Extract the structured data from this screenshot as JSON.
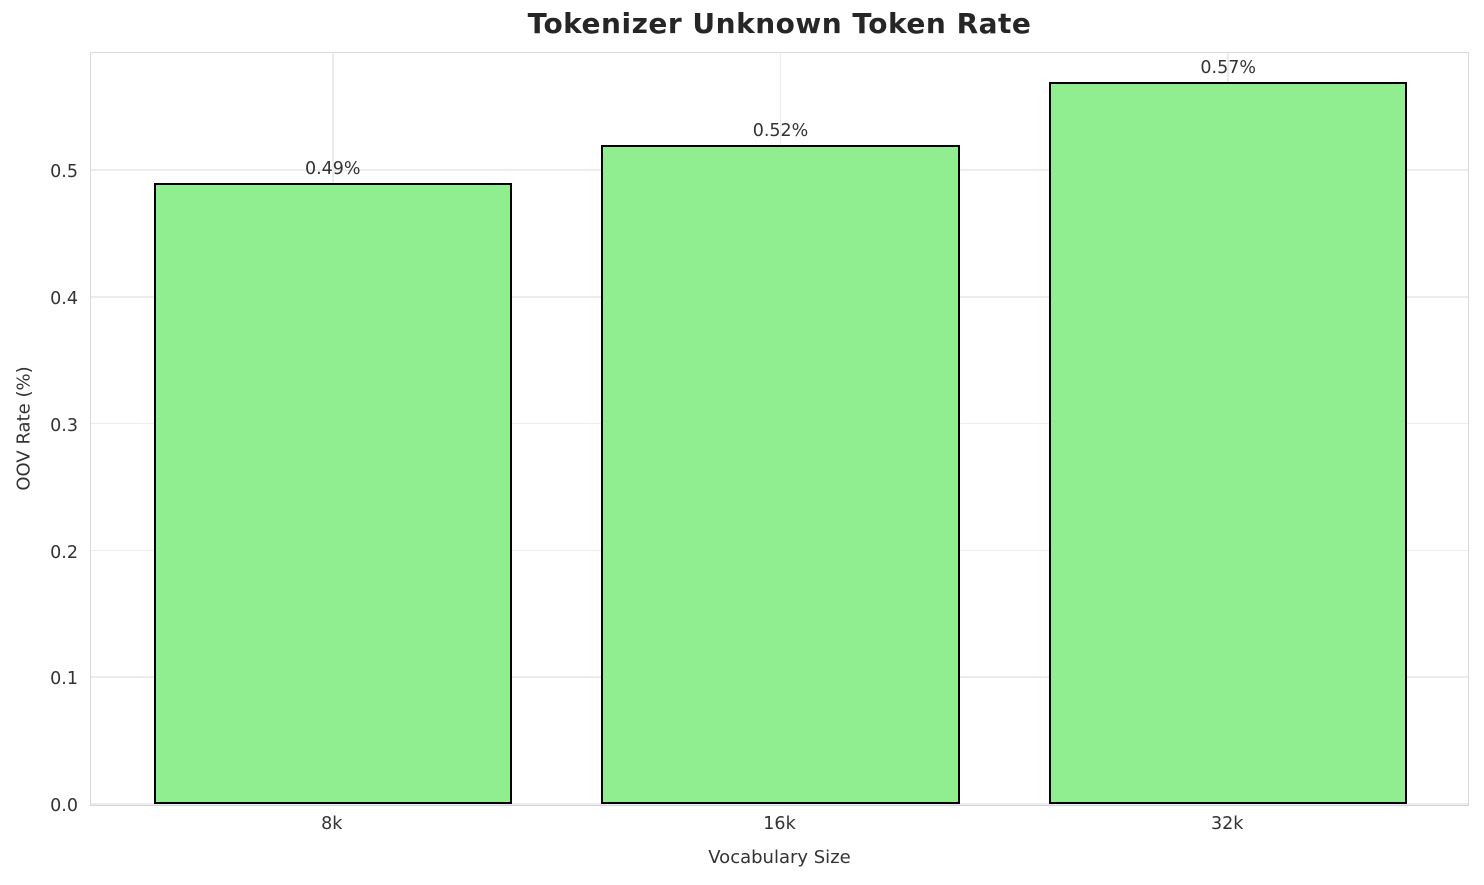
{
  "chart_data": {
    "type": "bar",
    "title": "Tokenizer Unknown Token Rate",
    "xlabel": "Vocabulary Size",
    "ylabel": "OOV Rate (%)",
    "categories": [
      "8k",
      "16k",
      "32k"
    ],
    "values": [
      0.49,
      0.52,
      0.57
    ],
    "bar_labels": [
      "0.49%",
      "0.52%",
      "0.57%"
    ],
    "ylim": [
      0,
      0.595
    ],
    "yticks": [
      0.0,
      0.1,
      0.2,
      0.3,
      0.4,
      0.5
    ],
    "ytick_labels": [
      "0.0",
      "0.1",
      "0.2",
      "0.3",
      "0.4",
      "0.5"
    ],
    "grid": true,
    "legend": "none",
    "bar_color": "#90EE90",
    "bar_edge_color": "#000000",
    "bar_width_fraction": 0.8
  }
}
